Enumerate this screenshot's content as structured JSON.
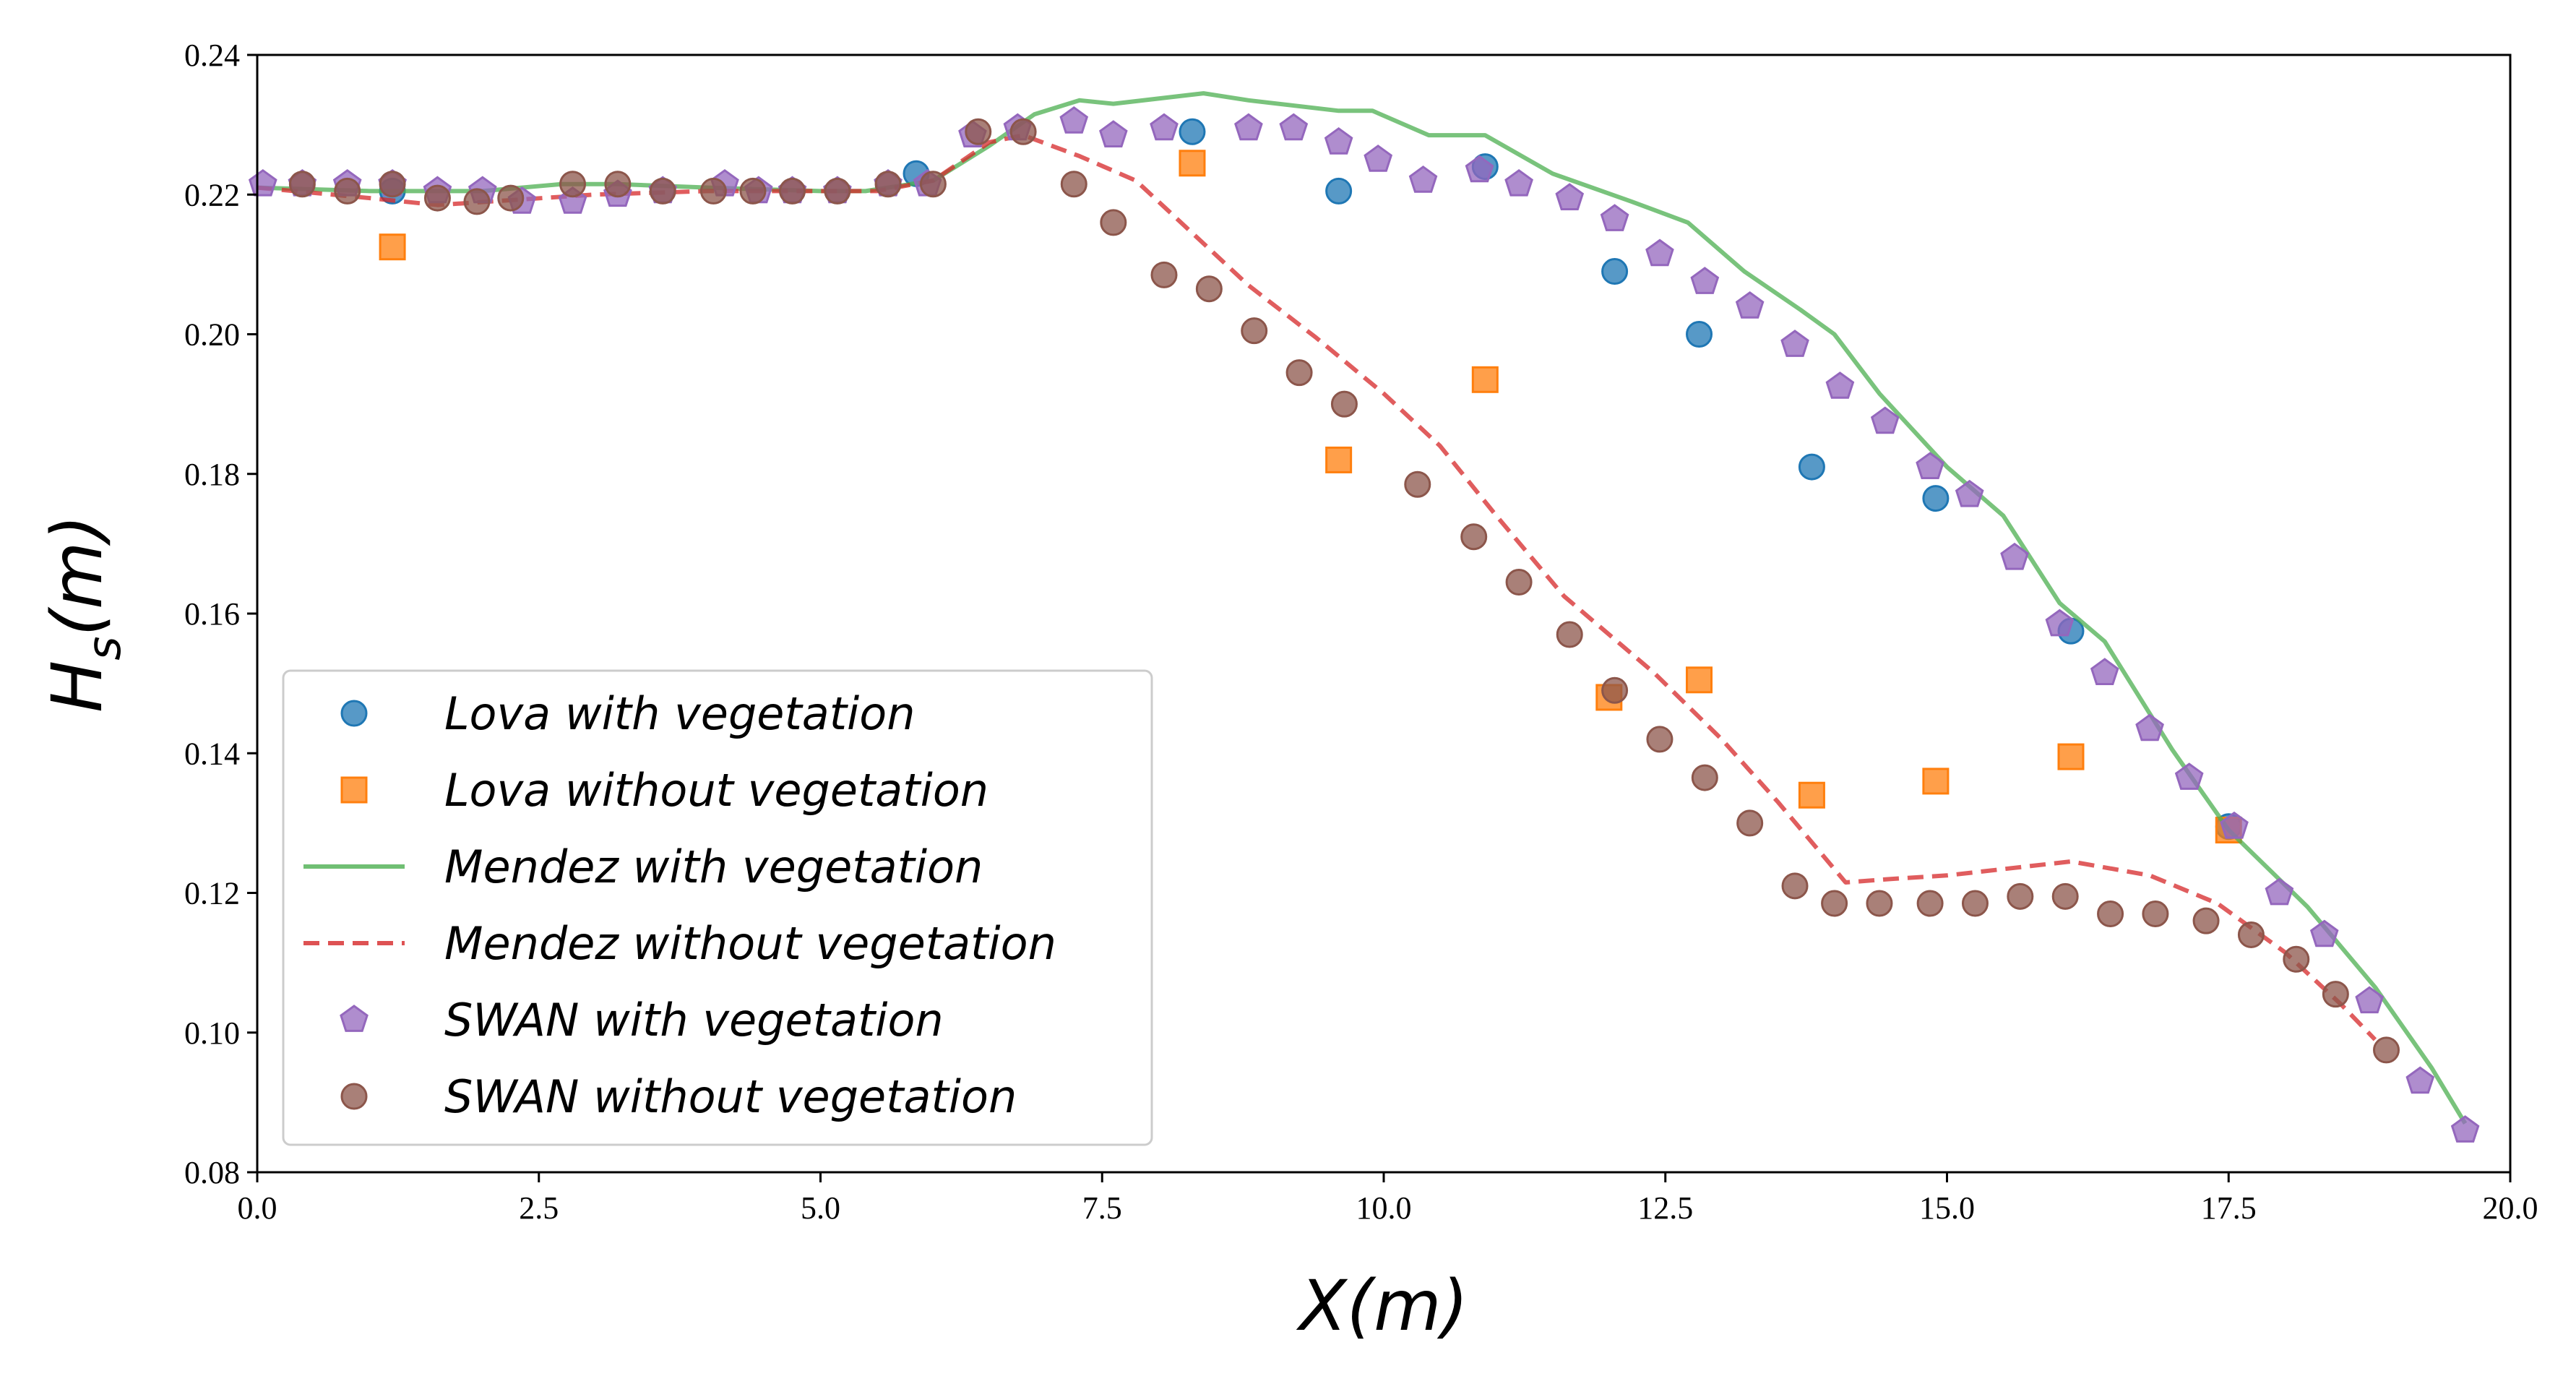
{
  "chart_data": {
    "type": "line",
    "xlabel": "X(m)",
    "ylabel": "H_s(m)",
    "xlim": [
      0,
      20
    ],
    "ylim": [
      0.08,
      0.24
    ],
    "xticks": [
      "0.0",
      "2.5",
      "5.0",
      "7.5",
      "10.0",
      "12.5",
      "15.0",
      "17.5",
      "20.0"
    ],
    "yticks": [
      "0.08",
      "0.10",
      "0.12",
      "0.14",
      "0.16",
      "0.18",
      "0.20",
      "0.22",
      "0.24"
    ],
    "grid": false,
    "legend_position": "lower-left",
    "series": [
      {
        "name": "Lova with vegetation",
        "kind": "scatter",
        "marker": "circle",
        "color": "#1f77b4",
        "points": [
          [
            1.2,
            0.2205
          ],
          [
            5.85,
            0.223
          ],
          [
            8.3,
            0.229
          ],
          [
            9.6,
            0.2205
          ],
          [
            10.9,
            0.224
          ],
          [
            12.05,
            0.209
          ],
          [
            12.8,
            0.2
          ],
          [
            13.8,
            0.181
          ],
          [
            14.9,
            0.1765
          ],
          [
            16.1,
            0.1575
          ],
          [
            17.5,
            0.1295
          ]
        ]
      },
      {
        "name": "Lova without vegetation",
        "kind": "scatter",
        "marker": "square",
        "color": "#ff7f0e",
        "points": [
          [
            1.2,
            0.2125
          ],
          [
            8.3,
            0.2245
          ],
          [
            9.6,
            0.182
          ],
          [
            10.9,
            0.1935
          ],
          [
            12.0,
            0.148
          ],
          [
            12.8,
            0.1505
          ],
          [
            13.8,
            0.134
          ],
          [
            14.9,
            0.136
          ],
          [
            16.1,
            0.1395
          ],
          [
            17.5,
            0.129
          ]
        ]
      },
      {
        "name": "Mendez with vegetation",
        "kind": "line",
        "dash": false,
        "color": "#4caf50",
        "points": [
          [
            0,
            0.221
          ],
          [
            1.0,
            0.2205
          ],
          [
            2.0,
            0.2205
          ],
          [
            2.7,
            0.2215
          ],
          [
            3.2,
            0.2215
          ],
          [
            4.0,
            0.221
          ],
          [
            5.0,
            0.2205
          ],
          [
            5.4,
            0.2205
          ],
          [
            6.0,
            0.222
          ],
          [
            6.5,
            0.227
          ],
          [
            6.9,
            0.2315
          ],
          [
            7.3,
            0.2335
          ],
          [
            7.6,
            0.233
          ],
          [
            8.4,
            0.2345
          ],
          [
            8.8,
            0.2335
          ],
          [
            9.6,
            0.232
          ],
          [
            9.9,
            0.232
          ],
          [
            10.4,
            0.2285
          ],
          [
            10.9,
            0.2285
          ],
          [
            11.5,
            0.223
          ],
          [
            12.2,
            0.219
          ],
          [
            12.7,
            0.216
          ],
          [
            13.2,
            0.209
          ],
          [
            13.7,
            0.2035
          ],
          [
            14.0,
            0.2
          ],
          [
            14.4,
            0.1915
          ],
          [
            15.0,
            0.181
          ],
          [
            15.5,
            0.174
          ],
          [
            16.0,
            0.1615
          ],
          [
            16.4,
            0.156
          ],
          [
            17.0,
            0.1405
          ],
          [
            17.5,
            0.129
          ],
          [
            18.2,
            0.118
          ],
          [
            18.8,
            0.1065
          ],
          [
            19.3,
            0.095
          ],
          [
            19.6,
            0.087
          ]
        ]
      },
      {
        "name": "Mendez without vegetation",
        "kind": "line",
        "dash": true,
        "color": "#d62728",
        "points": [
          [
            0,
            0.221
          ],
          [
            1.0,
            0.2195
          ],
          [
            1.6,
            0.2185
          ],
          [
            3.0,
            0.22
          ],
          [
            4.0,
            0.2205
          ],
          [
            5.0,
            0.2205
          ],
          [
            5.5,
            0.2205
          ],
          [
            6.0,
            0.222
          ],
          [
            6.5,
            0.2275
          ],
          [
            6.8,
            0.2285
          ],
          [
            7.3,
            0.2255
          ],
          [
            7.8,
            0.222
          ],
          [
            8.3,
            0.2145
          ],
          [
            8.8,
            0.207
          ],
          [
            9.4,
            0.1995
          ],
          [
            10.0,
            0.1915
          ],
          [
            10.5,
            0.184
          ],
          [
            11.0,
            0.174
          ],
          [
            11.6,
            0.1625
          ],
          [
            12.4,
            0.1515
          ],
          [
            13.0,
            0.142
          ],
          [
            13.5,
            0.133
          ],
          [
            14.1,
            0.1215
          ],
          [
            14.5,
            0.122
          ],
          [
            15.0,
            0.1225
          ],
          [
            16.1,
            0.1245
          ],
          [
            16.8,
            0.1225
          ],
          [
            17.4,
            0.1185
          ],
          [
            18.0,
            0.1115
          ],
          [
            18.5,
            0.104
          ],
          [
            18.8,
            0.099
          ]
        ]
      },
      {
        "name": "SWAN with vegetation",
        "kind": "scatter",
        "marker": "pentagon",
        "color": "#9467bd",
        "points": [
          [
            0.05,
            0.2215
          ],
          [
            0.4,
            0.2215
          ],
          [
            0.8,
            0.2215
          ],
          [
            1.2,
            0.2215
          ],
          [
            1.6,
            0.2205
          ],
          [
            2.0,
            0.2205
          ],
          [
            2.35,
            0.219
          ],
          [
            2.8,
            0.219
          ],
          [
            3.2,
            0.22
          ],
          [
            3.6,
            0.2205
          ],
          [
            4.15,
            0.2215
          ],
          [
            4.45,
            0.2205
          ],
          [
            4.75,
            0.2205
          ],
          [
            5.15,
            0.2205
          ],
          [
            5.6,
            0.2215
          ],
          [
            5.95,
            0.2215
          ],
          [
            6.35,
            0.2285
          ],
          [
            6.75,
            0.2295
          ],
          [
            7.25,
            0.2305
          ],
          [
            7.6,
            0.2285
          ],
          [
            8.05,
            0.2295
          ],
          [
            8.8,
            0.2295
          ],
          [
            9.2,
            0.2295
          ],
          [
            9.6,
            0.2275
          ],
          [
            9.95,
            0.225
          ],
          [
            10.35,
            0.222
          ],
          [
            10.85,
            0.2235
          ],
          [
            11.2,
            0.2215
          ],
          [
            11.65,
            0.2195
          ],
          [
            12.05,
            0.2165
          ],
          [
            12.45,
            0.2115
          ],
          [
            12.85,
            0.2075
          ],
          [
            13.25,
            0.204
          ],
          [
            13.65,
            0.1985
          ],
          [
            14.05,
            0.1925
          ],
          [
            14.45,
            0.1875
          ],
          [
            14.85,
            0.181
          ],
          [
            15.2,
            0.177
          ],
          [
            15.6,
            0.168
          ],
          [
            16.0,
            0.1585
          ],
          [
            16.4,
            0.1515
          ],
          [
            16.8,
            0.1435
          ],
          [
            17.15,
            0.1365
          ],
          [
            17.55,
            0.1295
          ],
          [
            17.95,
            0.12
          ],
          [
            18.35,
            0.114
          ],
          [
            18.75,
            0.1045
          ],
          [
            19.2,
            0.093
          ],
          [
            19.6,
            0.086
          ]
        ]
      },
      {
        "name": "SWAN without vegetation",
        "kind": "scatter",
        "marker": "circle",
        "color": "#8c564b",
        "points": [
          [
            0.4,
            0.2215
          ],
          [
            0.8,
            0.2205
          ],
          [
            1.2,
            0.2215
          ],
          [
            1.6,
            0.2195
          ],
          [
            1.95,
            0.219
          ],
          [
            2.25,
            0.2195
          ],
          [
            2.8,
            0.2215
          ],
          [
            3.2,
            0.2215
          ],
          [
            3.6,
            0.2205
          ],
          [
            4.05,
            0.2205
          ],
          [
            4.4,
            0.2205
          ],
          [
            4.75,
            0.2205
          ],
          [
            5.15,
            0.2205
          ],
          [
            5.6,
            0.2215
          ],
          [
            6.0,
            0.2215
          ],
          [
            6.4,
            0.229
          ],
          [
            6.8,
            0.229
          ],
          [
            7.25,
            0.2215
          ],
          [
            7.6,
            0.216
          ],
          [
            8.05,
            0.2085
          ],
          [
            8.45,
            0.2065
          ],
          [
            8.85,
            0.2005
          ],
          [
            9.25,
            0.1945
          ],
          [
            9.65,
            0.19
          ],
          [
            10.3,
            0.1785
          ],
          [
            10.8,
            0.171
          ],
          [
            11.2,
            0.1645
          ],
          [
            11.65,
            0.157
          ],
          [
            12.05,
            0.149
          ],
          [
            12.45,
            0.142
          ],
          [
            12.85,
            0.1365
          ],
          [
            13.25,
            0.13
          ],
          [
            13.65,
            0.121
          ],
          [
            14.0,
            0.1185
          ],
          [
            14.4,
            0.1185
          ],
          [
            14.85,
            0.1185
          ],
          [
            15.25,
            0.1185
          ],
          [
            15.65,
            0.1195
          ],
          [
            16.05,
            0.1195
          ],
          [
            16.45,
            0.117
          ],
          [
            16.85,
            0.117
          ],
          [
            17.3,
            0.116
          ],
          [
            17.7,
            0.114
          ],
          [
            18.1,
            0.1105
          ],
          [
            18.45,
            0.1055
          ],
          [
            18.9,
            0.0975
          ]
        ]
      }
    ]
  }
}
